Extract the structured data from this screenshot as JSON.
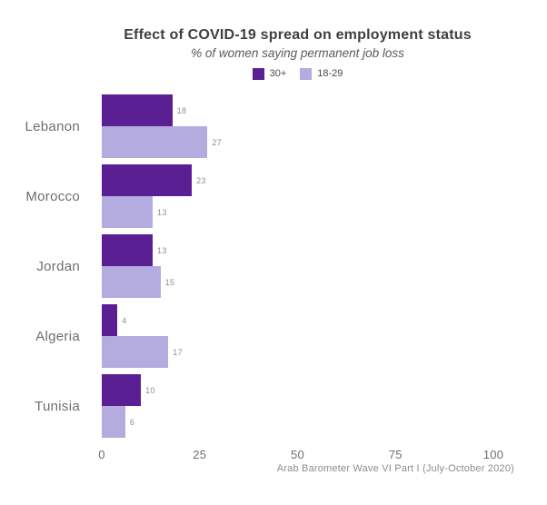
{
  "chart_data": {
    "type": "bar",
    "orientation": "horizontal",
    "title": "Effect of COVID-19 spread on employment status",
    "subtitle": "% of women saying permanent job loss",
    "categories": [
      "Lebanon",
      "Morocco",
      "Jordan",
      "Algeria",
      "Tunisia"
    ],
    "series": [
      {
        "name": "30+",
        "color": "#5B1F94",
        "values": [
          18,
          23,
          13,
          4,
          10
        ]
      },
      {
        "name": "18-29",
        "color": "#B4ABDF",
        "values": [
          27,
          13,
          15,
          17,
          6
        ]
      }
    ],
    "xlim": [
      0,
      100
    ],
    "xticks": [
      0,
      25,
      50,
      75,
      100
    ],
    "grid": false,
    "legend_position": "top-center",
    "value_labels": "outside-end",
    "source": "Arab Barometer Wave VI Part I (July-October 2020)"
  },
  "colors": {
    "series_30plus": "#5B1F94",
    "series_18_29": "#B4ABDF",
    "title_text": "#3f3f3f",
    "axis_text": "#6e6e6e",
    "value_text": "#8e8e8e",
    "background": "#ffffff"
  }
}
